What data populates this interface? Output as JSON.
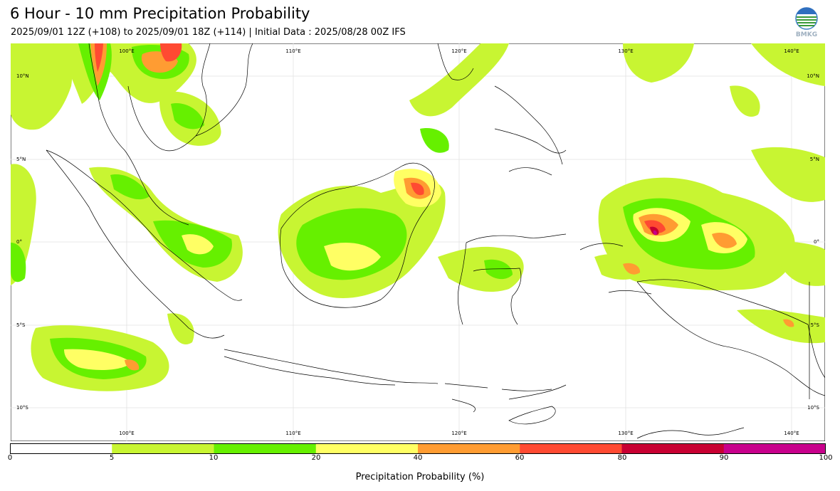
{
  "title": "6 Hour - 10 mm Precipitation Probability",
  "subtitle": "2025/09/01 12Z (+108) to 2025/09/01 18Z (+114) | Initial Data : 2025/08/28 00Z IFS",
  "logo": {
    "text": "BMKG",
    "icon": "bmkg-logo-icon"
  },
  "map": {
    "lon_range": [
      93,
      142
    ],
    "lat_range": [
      -12,
      12
    ],
    "lon_labels": [
      "100°E",
      "110°E",
      "120°E",
      "130°E",
      "140°E"
    ],
    "lat_labels": [
      "10°N",
      "5°N",
      "0°",
      "5°S",
      "10°S"
    ],
    "gridlines": true
  },
  "colorbar": {
    "label": "Precipitation Probability (%)",
    "ticks": [
      "0",
      "5",
      "10",
      "20",
      "40",
      "60",
      "80",
      "90",
      "100"
    ],
    "colors": [
      "#ffffff",
      "#c8f532",
      "#66f000",
      "#ffff64",
      "#ff9c32",
      "#ff4a32",
      "#c80032",
      "#c8008c"
    ]
  }
}
